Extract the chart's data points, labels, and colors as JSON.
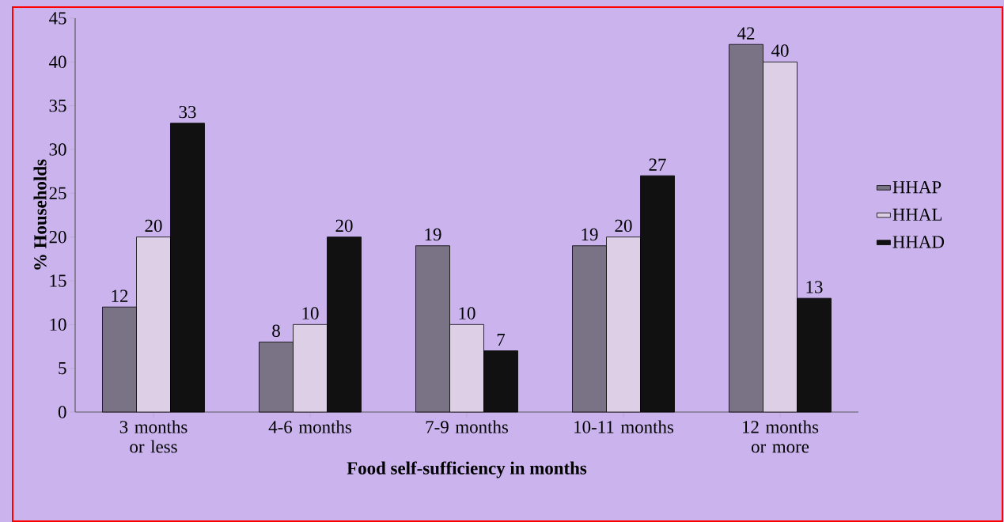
{
  "chart_data": {
    "type": "bar",
    "xlabel": "Food self-sufficiency in months",
    "ylabel": "% Households",
    "categories": [
      "3 months or less",
      "4-6 months",
      "7-9 months",
      "10-11 months",
      "12 months or more"
    ],
    "series": [
      {
        "name": "HHAP",
        "color": "#7a7285",
        "values": [
          12,
          8,
          19,
          19,
          42
        ]
      },
      {
        "name": "HHAL",
        "color": "#ddd0e6",
        "values": [
          20,
          10,
          10,
          20,
          40
        ]
      },
      {
        "name": "HHAD",
        "color": "#111111",
        "values": [
          33,
          20,
          7,
          27,
          13
        ]
      }
    ],
    "ylim": [
      0,
      45
    ],
    "yticks": [
      0,
      5,
      10,
      15,
      20,
      25,
      30,
      35,
      40,
      45
    ],
    "data_labels": true,
    "legend": "right",
    "grid": false
  }
}
